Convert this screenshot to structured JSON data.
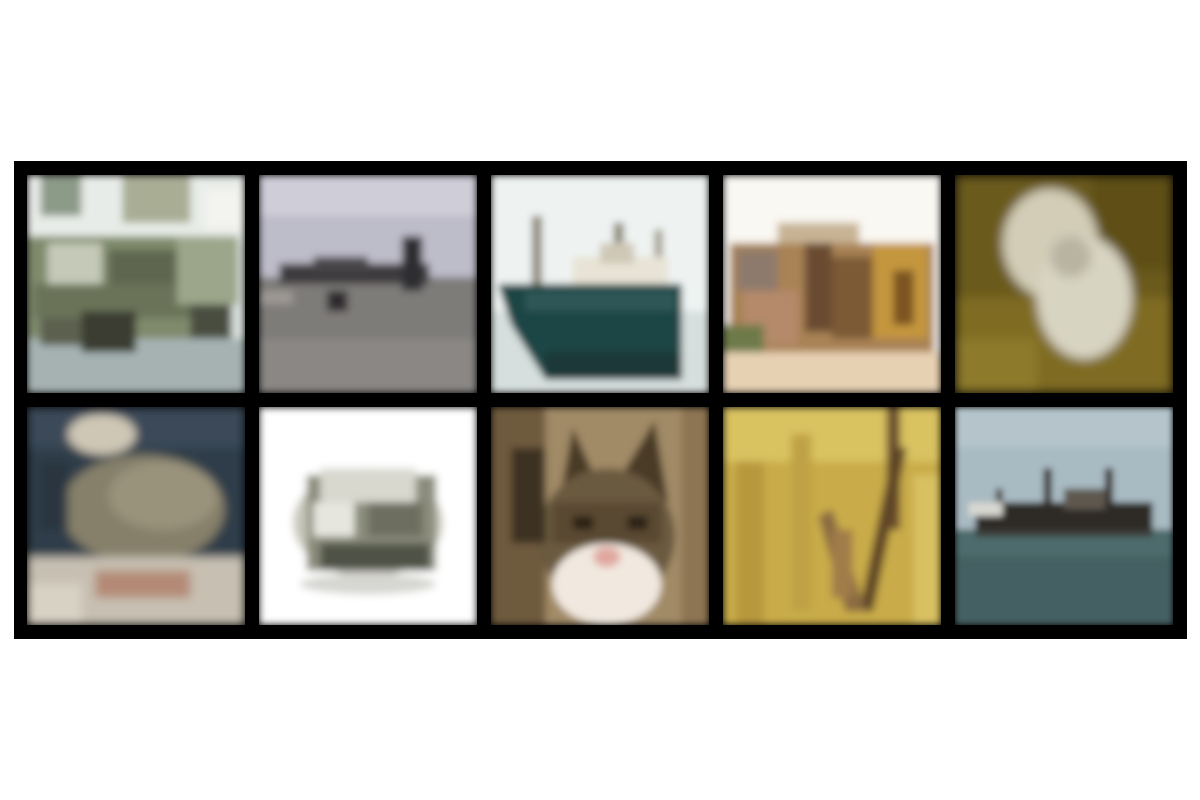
{
  "grid": {
    "rows": 2,
    "columns": 5,
    "background_color": "#000000",
    "page_color": "#ffffff",
    "tiles": [
      {
        "subject": "military-truck",
        "dominant_colors": [
          "#8a957a",
          "#dfe5e0",
          "#565c4a"
        ]
      },
      {
        "subject": "airplane",
        "dominant_colors": [
          "#b9b8c6",
          "#7f7a76",
          "#3a3738"
        ]
      },
      {
        "subject": "ship",
        "dominant_colors": [
          "#f1f5f3",
          "#1f4545",
          "#cfd8d6"
        ]
      },
      {
        "subject": "ruined-building",
        "dominant_colors": [
          "#f8f6f0",
          "#9a7448",
          "#e3c9a5"
        ]
      },
      {
        "subject": "white-animal",
        "dominant_colors": [
          "#6b5a1c",
          "#d8d3c0",
          "#8a7a2a"
        ]
      },
      {
        "subject": "animal-on-rock",
        "dominant_colors": [
          "#2c3a48",
          "#8a8068",
          "#c9c2b6"
        ]
      },
      {
        "subject": "car",
        "dominant_colors": [
          "#ffffff",
          "#8a8b7a",
          "#5a5c4c"
        ]
      },
      {
        "subject": "cat",
        "dominant_colors": [
          "#a18a66",
          "#5a4a34",
          "#f2e9e0"
        ]
      },
      {
        "subject": "grass-with-branches",
        "dominant_colors": [
          "#c9ad46",
          "#8a6a3a",
          "#e2c86a"
        ]
      },
      {
        "subject": "ship-on-sea",
        "dominant_colors": [
          "#a6b8c0",
          "#2e2a26",
          "#4e6a6c"
        ]
      }
    ]
  }
}
